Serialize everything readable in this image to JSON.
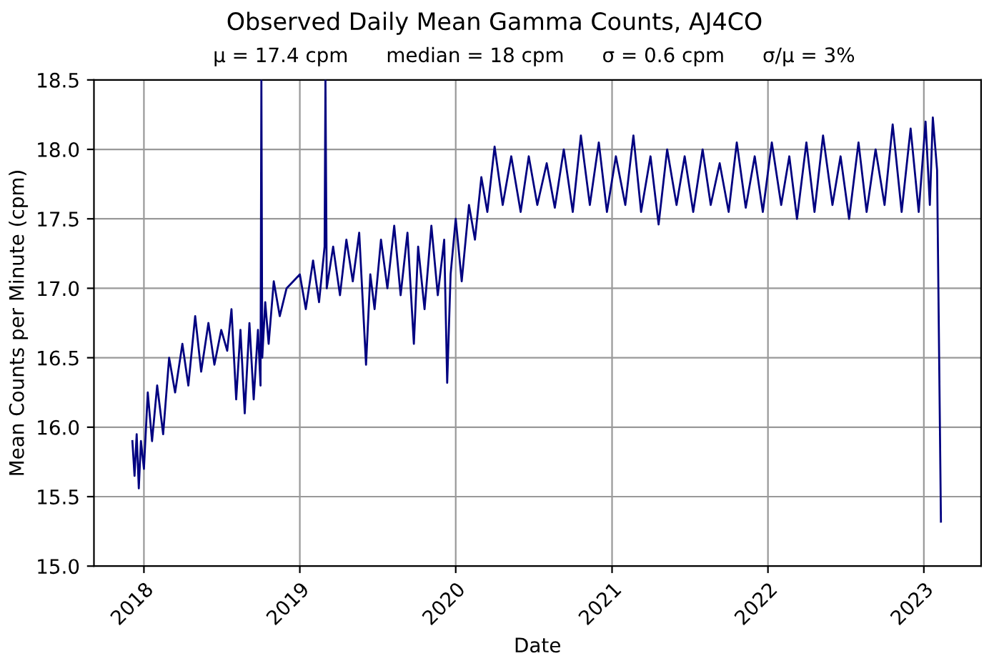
{
  "chart_data": {
    "type": "line",
    "title": "Observed Daily Mean Gamma Counts, AJ4CO",
    "subtitle": "μ = 17.4 cpm      median = 18 cpm      σ = 0.6 cpm      σ/μ = 3%",
    "xlabel": "Date",
    "ylabel": "Mean Counts per Minute (cpm)",
    "xlim": [
      "2017-09-06",
      "2023-05-15"
    ],
    "xticks": [
      {
        "value": "2018-01-01",
        "label": "2018"
      },
      {
        "value": "2019-01-01",
        "label": "2019"
      },
      {
        "value": "2020-01-01",
        "label": "2020"
      },
      {
        "value": "2021-01-01",
        "label": "2021"
      },
      {
        "value": "2022-01-01",
        "label": "2022"
      },
      {
        "value": "2023-01-01",
        "label": "2023"
      }
    ],
    "ylim": [
      15.0,
      18.5
    ],
    "yticks": [
      {
        "value": 15.0,
        "label": "15.0"
      },
      {
        "value": 15.5,
        "label": "15.5"
      },
      {
        "value": 16.0,
        "label": "16.0"
      },
      {
        "value": 16.5,
        "label": "16.5"
      },
      {
        "value": 17.0,
        "label": "17.0"
      },
      {
        "value": 17.5,
        "label": "17.5"
      },
      {
        "value": 18.0,
        "label": "18.0"
      },
      {
        "value": 18.5,
        "label": "18.5"
      }
    ],
    "grid": true,
    "line_style": "solid",
    "marker": "none",
    "series": [
      {
        "color": "#000080",
        "x": [
          "2017-12-05",
          "2017-12-10",
          "2017-12-15",
          "2017-12-20",
          "2017-12-25",
          "2018-01-01",
          "2018-01-10",
          "2018-01-20",
          "2018-02-01",
          "2018-02-15",
          "2018-03-01",
          "2018-03-15",
          "2018-04-01",
          "2018-04-15",
          "2018-05-01",
          "2018-05-15",
          "2018-06-01",
          "2018-06-15",
          "2018-07-01",
          "2018-07-15",
          "2018-07-25",
          "2018-08-05",
          "2018-08-15",
          "2018-08-25",
          "2018-09-05",
          "2018-09-15",
          "2018-09-25",
          "2018-10-01",
          "2018-10-03",
          "2018-10-05",
          "2018-10-12",
          "2018-10-20",
          "2018-11-01",
          "2018-11-15",
          "2018-12-01",
          "2019-01-01",
          "2019-01-15",
          "2019-02-01",
          "2019-02-15",
          "2019-02-28",
          "2019-03-02",
          "2019-03-05",
          "2019-03-20",
          "2019-04-05",
          "2019-04-20",
          "2019-05-05",
          "2019-05-20",
          "2019-06-05",
          "2019-06-15",
          "2019-06-25",
          "2019-07-10",
          "2019-07-25",
          "2019-08-10",
          "2019-08-25",
          "2019-09-10",
          "2019-09-25",
          "2019-10-05",
          "2019-10-20",
          "2019-11-05",
          "2019-11-20",
          "2019-12-05",
          "2019-12-12",
          "2019-12-20",
          "2020-01-01",
          "2020-01-15",
          "2020-02-01",
          "2020-02-15",
          "2020-03-01",
          "2020-03-15",
          "2020-04-01",
          "2020-04-20",
          "2020-05-10",
          "2020-06-01",
          "2020-06-20",
          "2020-07-10",
          "2020-08-01",
          "2020-08-20",
          "2020-09-10",
          "2020-10-01",
          "2020-10-20",
          "2020-11-10",
          "2020-12-01",
          "2020-12-20",
          "2021-01-10",
          "2021-02-01",
          "2021-02-20",
          "2021-03-10",
          "2021-04-01",
          "2021-04-20",
          "2021-05-10",
          "2021-06-01",
          "2021-06-20",
          "2021-07-10",
          "2021-08-01",
          "2021-08-20",
          "2021-09-10",
          "2021-10-01",
          "2021-10-20",
          "2021-11-10",
          "2021-12-01",
          "2021-12-20",
          "2022-01-10",
          "2022-02-01",
          "2022-02-20",
          "2022-03-10",
          "2022-04-01",
          "2022-04-20",
          "2022-05-10",
          "2022-06-01",
          "2022-06-20",
          "2022-07-10",
          "2022-08-01",
          "2022-08-20",
          "2022-09-10",
          "2022-10-01",
          "2022-10-20",
          "2022-11-10",
          "2022-12-01",
          "2022-12-20",
          "2023-01-05",
          "2023-01-15",
          "2023-01-22",
          "2023-02-01",
          "2023-02-10"
        ],
        "values": [
          15.9,
          15.65,
          15.95,
          15.56,
          15.9,
          15.7,
          16.25,
          15.9,
          16.3,
          15.95,
          16.5,
          16.25,
          16.6,
          16.3,
          16.8,
          16.4,
          16.75,
          16.45,
          16.7,
          16.55,
          16.85,
          16.2,
          16.7,
          16.1,
          16.75,
          16.2,
          16.7,
          16.3,
          18.5,
          16.5,
          16.9,
          16.6,
          17.05,
          16.8,
          17.0,
          17.1,
          16.85,
          17.2,
          16.9,
          17.3,
          18.5,
          17.0,
          17.3,
          16.95,
          17.35,
          17.05,
          17.4,
          16.45,
          17.1,
          16.85,
          17.35,
          17.0,
          17.45,
          16.95,
          17.4,
          16.6,
          17.3,
          16.85,
          17.45,
          16.95,
          17.35,
          16.32,
          17.1,
          17.5,
          17.05,
          17.6,
          17.35,
          17.8,
          17.55,
          18.02,
          17.6,
          17.95,
          17.55,
          17.95,
          17.6,
          17.9,
          17.58,
          18.0,
          17.55,
          18.1,
          17.6,
          18.05,
          17.55,
          17.95,
          17.6,
          18.1,
          17.55,
          17.95,
          17.46,
          18.0,
          17.6,
          17.95,
          17.55,
          18.0,
          17.6,
          17.9,
          17.55,
          18.05,
          17.58,
          17.95,
          17.55,
          18.05,
          17.6,
          17.95,
          17.5,
          18.05,
          17.55,
          18.1,
          17.6,
          17.95,
          17.5,
          18.05,
          17.55,
          18.0,
          17.6,
          18.18,
          17.55,
          18.15,
          17.55,
          18.2,
          17.6,
          18.23,
          17.85,
          15.32
        ]
      }
    ]
  }
}
